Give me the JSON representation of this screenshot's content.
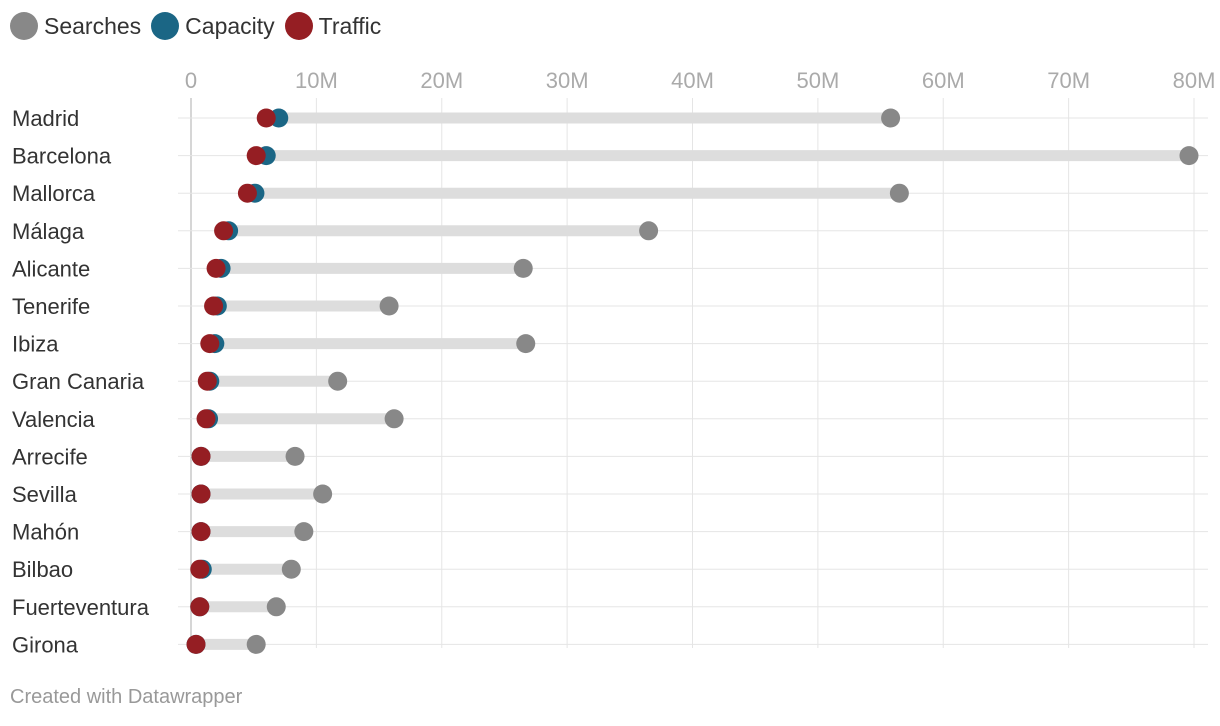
{
  "colors": {
    "searches": "#888888",
    "capacity": "#1b6685",
    "traffic": "#951e23",
    "range_bar": "#dddddd",
    "grid": "#e5e5e5",
    "tick_text": "#aaaaaa",
    "label_text": "#333333"
  },
  "legend": [
    {
      "name": "Searches",
      "color": "#888888"
    },
    {
      "name": "Capacity",
      "color": "#1b6685"
    },
    {
      "name": "Traffic",
      "color": "#951e23"
    }
  ],
  "footer": {
    "credit": "Created with Datawrapper"
  },
  "chart_data": {
    "type": "scatter",
    "subtype": "dot-range",
    "title": "",
    "xlim": [
      0,
      80000000
    ],
    "x_ticks": [
      0,
      10000000,
      20000000,
      30000000,
      40000000,
      50000000,
      60000000,
      70000000,
      80000000
    ],
    "x_tick_labels": [
      "0",
      "10M",
      "20M",
      "30M",
      "40M",
      "50M",
      "60M",
      "70M",
      "80M"
    ],
    "categories": [
      "Madrid",
      "Barcelona",
      "Mallorca",
      "Málaga",
      "Alicante",
      "Tenerife",
      "Ibiza",
      "Gran Canaria",
      "Valencia",
      "Arrecife",
      "Sevilla",
      "Mahón",
      "Bilbao",
      "Fuerteventura",
      "Girona"
    ],
    "series": [
      {
        "name": "Searches",
        "values": [
          55800000,
          79600000,
          56500000,
          36500000,
          26500000,
          15800000,
          26700000,
          11700000,
          16200000,
          8300000,
          10500000,
          9000000,
          8000000,
          6800000,
          5200000
        ]
      },
      {
        "name": "Capacity",
        "values": [
          7000000,
          6000000,
          5100000,
          3000000,
          2400000,
          2100000,
          1900000,
          1500000,
          1400000,
          800000,
          800000,
          800000,
          900000,
          700000,
          400000
        ]
      },
      {
        "name": "Traffic",
        "values": [
          6000000,
          5200000,
          4500000,
          2600000,
          2000000,
          1800000,
          1500000,
          1300000,
          1200000,
          800000,
          800000,
          800000,
          700000,
          700000,
          400000
        ]
      }
    ]
  }
}
